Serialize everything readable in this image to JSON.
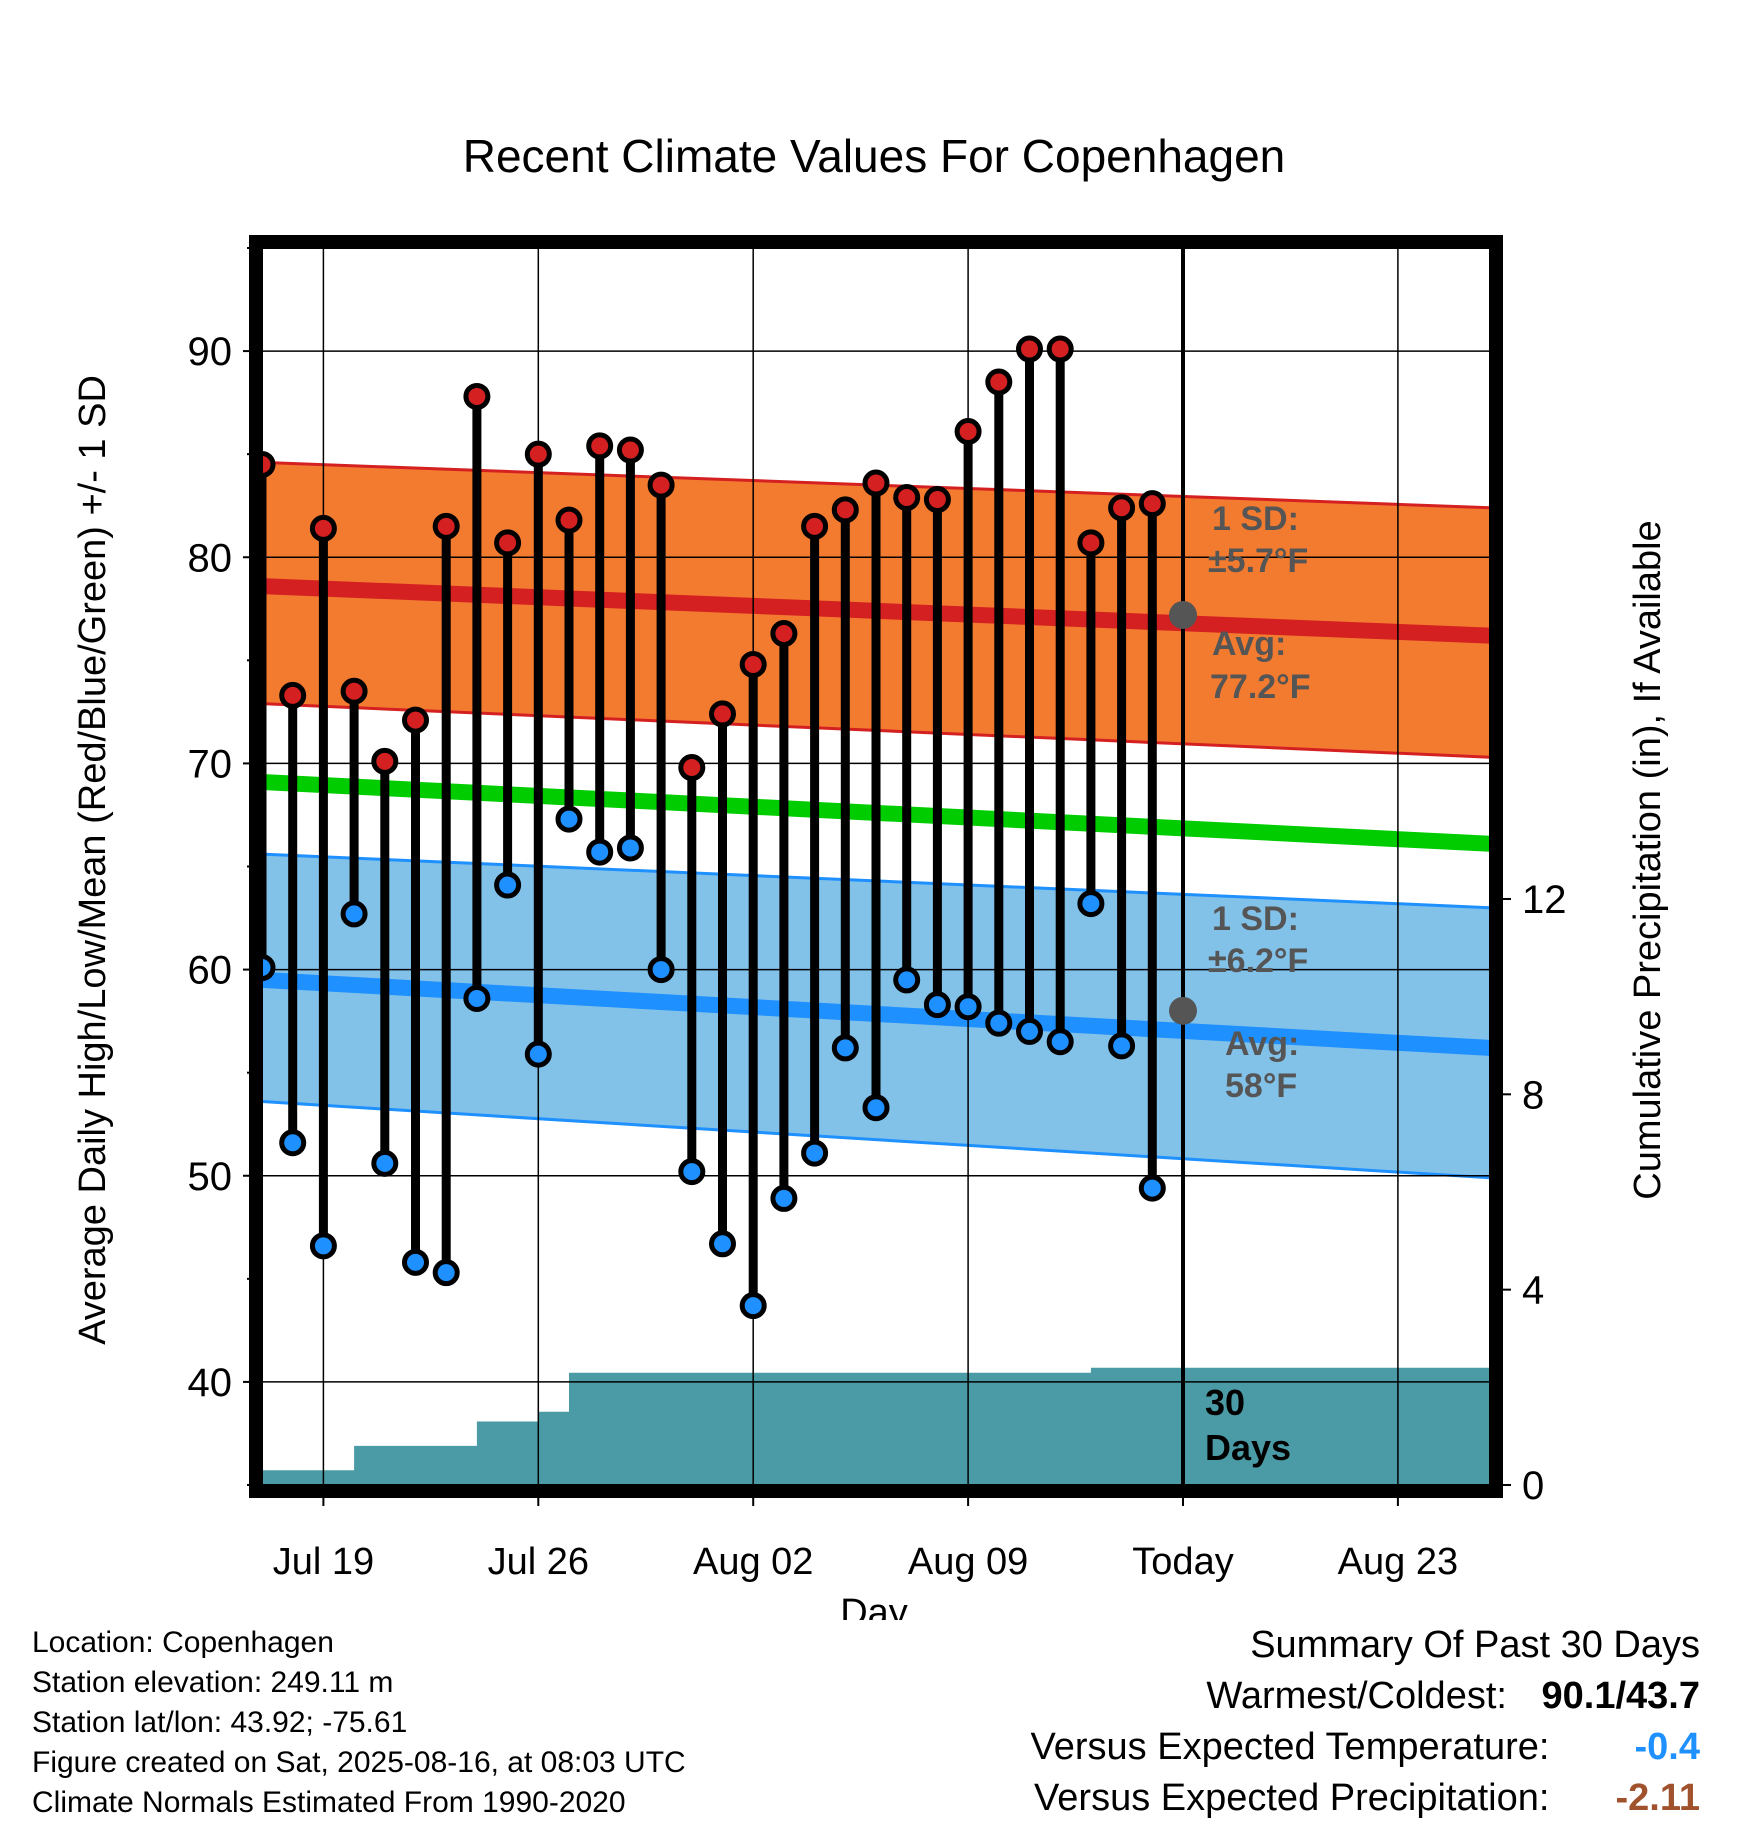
{
  "chart_data": {
    "type": "line",
    "title": "Recent Climate Values For Copenhagen",
    "xlabel": "Day",
    "ylabel": "Average Daily High/Low/Mean (Red/Blue/Green) +/- 1 SD",
    "y2label": "Cumulative Precipitation (in), If Available",
    "ylim": [
      35,
      95
    ],
    "y2lim": [
      0,
      25.33
    ],
    "y_ticks": [
      40,
      50,
      60,
      70,
      80,
      90
    ],
    "y2_ticks": [
      0,
      4,
      8,
      12
    ],
    "x_dates": [
      "Jul 17",
      "Jul 18",
      "Jul 19",
      "Jul 20",
      "Jul 21",
      "Jul 22",
      "Jul 23",
      "Jul 24",
      "Jul 25",
      "Jul 26",
      "Jul 27",
      "Jul 28",
      "Jul 29",
      "Jul 30",
      "Jul 31",
      "Aug 01",
      "Aug 02",
      "Aug 03",
      "Aug 04",
      "Aug 05",
      "Aug 06",
      "Aug 07",
      "Aug 08",
      "Aug 09",
      "Aug 10",
      "Aug 11",
      "Aug 12",
      "Aug 13",
      "Aug 14",
      "Aug 15",
      "Aug 16",
      "Aug 17",
      "Aug 18",
      "Aug 19",
      "Aug 20",
      "Aug 21",
      "Aug 22",
      "Aug 23",
      "Aug 24",
      "Aug 25",
      "Aug 26"
    ],
    "x_tick_labels": [
      "Jul 19",
      "Jul 26",
      "Aug 02",
      "Aug 09",
      "Today",
      "Aug 23"
    ],
    "today": "Aug 16",
    "series": [
      {
        "name": "High",
        "color": "#d42020",
        "values": [
          84.5,
          73.3,
          81.4,
          73.5,
          70.1,
          72.1,
          81.5,
          87.8,
          80.7,
          85.0,
          81.8,
          85.4,
          85.2,
          83.5,
          69.8,
          72.4,
          74.8,
          76.3,
          81.5,
          82.3,
          83.6,
          82.9,
          82.8,
          86.1,
          88.5,
          90.1,
          90.1,
          80.7,
          82.4,
          82.6
        ]
      },
      {
        "name": "Low",
        "color": "#1e90ff",
        "values": [
          60.1,
          51.6,
          46.6,
          62.7,
          50.6,
          45.8,
          45.3,
          58.6,
          64.1,
          55.9,
          67.3,
          65.7,
          65.9,
          60.0,
          50.2,
          46.7,
          43.7,
          48.9,
          51.1,
          56.2,
          53.3,
          59.5,
          58.3,
          58.2,
          57.4,
          57.0,
          56.5,
          63.2,
          56.3,
          49.4
        ]
      }
    ],
    "normals": {
      "high_mean": [
        78.6,
        76.2
      ],
      "high_sd_upper": [
        84.6,
        82.4
      ],
      "high_sd_lower": [
        72.9,
        70.3
      ],
      "mean": [
        69.1,
        66.1
      ],
      "low_mean": [
        59.5,
        56.2
      ],
      "low_sd_upper": [
        65.6,
        63.0
      ],
      "low_sd_lower": [
        53.6,
        49.9
      ],
      "colors": {
        "high_band": "#f37b30",
        "high_line": "#d42020",
        "mean_line": "#00cc00",
        "low_band": "#82c1e8",
        "low_line": "#1e90ff"
      }
    },
    "cumulative_precipitation": {
      "color": "#4a9ba6",
      "steps": [
        {
          "from": "Jul 17",
          "value": 0.3
        },
        {
          "from": "Jul 20",
          "value": 0.8
        },
        {
          "from": "Jul 24",
          "value": 1.3
        },
        {
          "from": "Jul 26",
          "value": 1.5
        },
        {
          "from": "Jul 27",
          "value": 2.3
        },
        {
          "from": "Aug 13",
          "value": 2.4
        }
      ]
    },
    "annotations": {
      "high_sd_label": "1 SD:",
      "high_sd_value": "±5.7°F",
      "high_avg_label": "Avg:",
      "high_avg_value": "77.2°F",
      "high_avg": 77.2,
      "low_sd_label": "1 SD:",
      "low_sd_value": "±6.2°F",
      "low_avg_label": "Avg:",
      "low_avg_value": "58°F",
      "low_avg": 58,
      "days_label_1": "30",
      "days_label_2": "Days"
    }
  },
  "info": {
    "location": "Location: Copenhagen",
    "elevation": "Station elevation: 249.11 m",
    "latlon": "Station lat/lon: 43.92; -75.61",
    "created": "Figure created on Sat, 2025-08-16, at 08:03 UTC",
    "normals": "Climate Normals Estimated From 1990-2020"
  },
  "summary": {
    "title": "Summary Of Past 30 Days",
    "warm_cold_label": "Warmest/Coldest:",
    "warm_cold_value": "90.1/43.7",
    "temp_label": "Versus Expected Temperature:",
    "temp_value": "-0.4",
    "temp_color": "#1e90ff",
    "precip_label": "Versus Expected Precipitation:",
    "precip_value": "-2.11",
    "precip_color": "#a0522d"
  }
}
